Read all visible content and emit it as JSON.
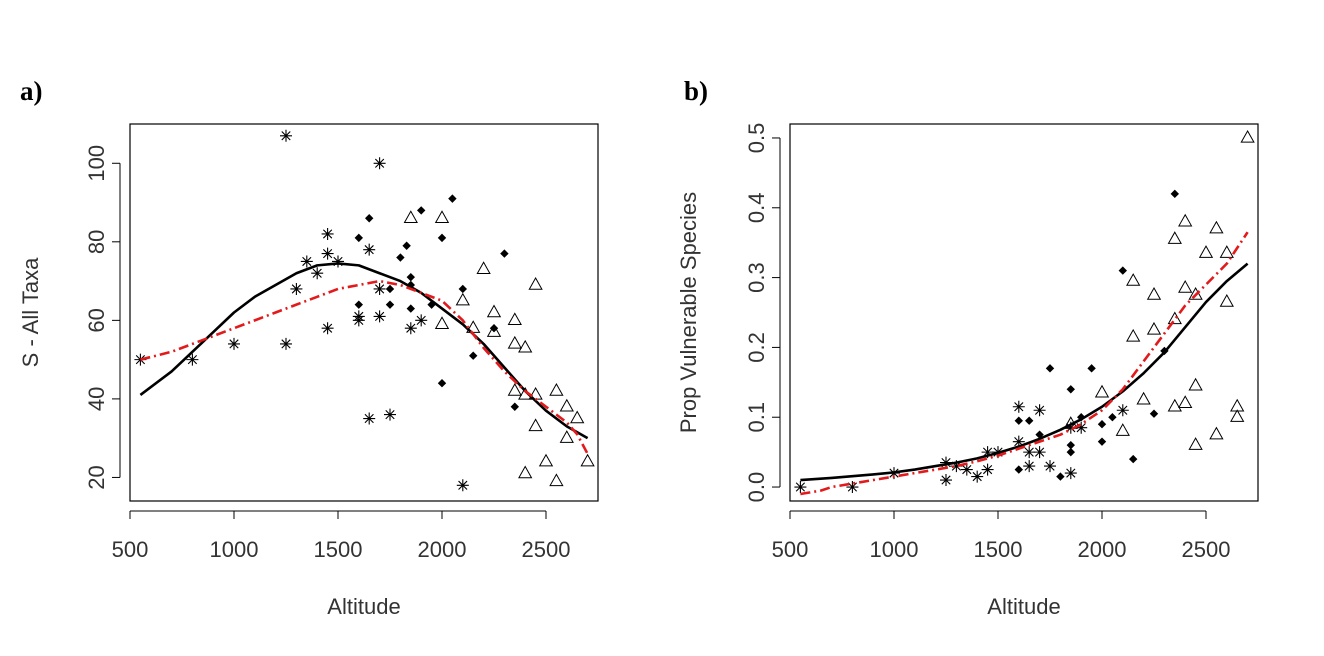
{
  "chart_data": [
    {
      "panel": "a)",
      "type": "scatter",
      "xlabel": "Altitude",
      "ylabel": "S - All Taxa",
      "xlim": [
        500,
        2750
      ],
      "ylim": [
        14,
        110
      ],
      "xticks": [
        500,
        1000,
        1500,
        2000,
        2500
      ],
      "yticks": [
        20,
        40,
        60,
        80,
        100
      ],
      "series": [
        {
          "marker": "asterisk",
          "x": [
            550,
            800,
            1000,
            1250,
            1250,
            1300,
            1350,
            1400,
            1450,
            1450,
            1450,
            1500,
            1600,
            1600,
            1650,
            1650,
            1700,
            1700,
            1700,
            1750,
            1850,
            1900,
            2100
          ],
          "y": [
            50,
            50,
            54,
            107,
            54,
            68,
            75,
            72,
            82,
            77,
            58,
            75,
            61,
            60,
            78,
            35,
            100,
            61,
            68,
            36,
            58,
            60,
            18
          ]
        },
        {
          "marker": "diamond",
          "x": [
            1600,
            1600,
            1650,
            1750,
            1750,
            1800,
            1830,
            1850,
            1850,
            1850,
            1900,
            1950,
            2000,
            2000,
            2050,
            2100,
            2150,
            2250,
            2300,
            2350
          ],
          "y": [
            81,
            64,
            86,
            68,
            64,
            76,
            79,
            71,
            63,
            69,
            88,
            64,
            81,
            44,
            91,
            68,
            51,
            58,
            77,
            38
          ]
        },
        {
          "marker": "triangle",
          "x": [
            1850,
            2000,
            2000,
            2100,
            2150,
            2200,
            2250,
            2250,
            2350,
            2350,
            2350,
            2400,
            2400,
            2400,
            2450,
            2450,
            2450,
            2500,
            2550,
            2550,
            2600,
            2600,
            2650,
            2700
          ],
          "y": [
            86,
            86,
            59,
            65,
            58,
            73,
            62,
            57,
            60,
            54,
            42,
            53,
            41,
            21,
            69,
            41,
            33,
            24,
            42,
            19,
            38,
            30,
            35,
            24
          ]
        }
      ],
      "fits": [
        {
          "style": "solid",
          "color": "#000000",
          "x": [
            550,
            700,
            900,
            1000,
            1100,
            1200,
            1300,
            1400,
            1500,
            1600,
            1700,
            1800,
            1900,
            2000,
            2100,
            2200,
            2300,
            2400,
            2500,
            2600,
            2700
          ],
          "y": [
            41,
            47,
            57,
            62,
            66,
            69,
            72,
            74,
            74.5,
            74,
            72,
            70,
            67,
            63,
            59,
            54,
            48,
            42,
            37,
            33,
            30
          ]
        },
        {
          "style": "dashdot",
          "color": "#e31a1c",
          "x": [
            550,
            700,
            900,
            1000,
            1100,
            1200,
            1300,
            1400,
            1500,
            1600,
            1700,
            1800,
            1900,
            2000,
            2100,
            2200,
            2300,
            2400,
            2500,
            2550,
            2600,
            2650,
            2700
          ],
          "y": [
            50,
            52,
            56,
            58,
            60,
            62,
            64,
            66,
            68,
            69,
            70,
            69,
            67,
            65,
            60,
            53,
            47,
            42,
            38,
            36,
            34,
            31,
            26
          ]
        }
      ]
    },
    {
      "panel": "b)",
      "type": "scatter",
      "xlabel": "Altitude",
      "ylabel": "Prop Vulnerable Species",
      "xlim": [
        500,
        2750
      ],
      "ylim": [
        -0.02,
        0.52
      ],
      "xticks": [
        500,
        1000,
        1500,
        2000,
        2500
      ],
      "yticks": [
        0.0,
        0.1,
        0.2,
        0.3,
        0.4,
        0.5
      ],
      "ytick_labels": [
        "0.0",
        "0.1",
        "0.2",
        "0.3",
        "0.4",
        "0.5"
      ],
      "series": [
        {
          "marker": "asterisk",
          "x": [
            550,
            800,
            1000,
            1250,
            1250,
            1300,
            1350,
            1400,
            1450,
            1450,
            1500,
            1600,
            1600,
            1650,
            1650,
            1700,
            1700,
            1750,
            1850,
            1850,
            1900,
            2100
          ],
          "y": [
            0.0,
            0.0,
            0.02,
            0.035,
            0.01,
            0.03,
            0.025,
            0.015,
            0.05,
            0.025,
            0.05,
            0.115,
            0.065,
            0.05,
            0.03,
            0.11,
            0.05,
            0.03,
            0.085,
            0.02,
            0.085,
            0.11
          ]
        },
        {
          "marker": "diamond",
          "x": [
            1600,
            1600,
            1650,
            1700,
            1750,
            1800,
            1850,
            1850,
            1850,
            1900,
            1950,
            2000,
            2000,
            2050,
            2100,
            2150,
            2250,
            2300,
            2350
          ],
          "y": [
            0.095,
            0.025,
            0.095,
            0.075,
            0.17,
            0.015,
            0.14,
            0.06,
            0.05,
            0.1,
            0.17,
            0.09,
            0.065,
            0.1,
            0.31,
            0.04,
            0.105,
            0.195,
            0.42
          ]
        },
        {
          "marker": "triangle",
          "x": [
            1850,
            2000,
            2100,
            2150,
            2150,
            2200,
            2250,
            2250,
            2350,
            2350,
            2350,
            2400,
            2400,
            2400,
            2450,
            2450,
            2450,
            2500,
            2550,
            2550,
            2600,
            2600,
            2650,
            2650,
            2700
          ],
          "y": [
            0.09,
            0.135,
            0.08,
            0.295,
            0.215,
            0.125,
            0.275,
            0.225,
            0.355,
            0.24,
            0.115,
            0.38,
            0.285,
            0.12,
            0.275,
            0.145,
            0.06,
            0.335,
            0.37,
            0.075,
            0.335,
            0.265,
            0.115,
            0.1,
            0.5
          ]
        }
      ],
      "fits": [
        {
          "style": "solid",
          "color": "#000000",
          "x": [
            550,
            700,
            900,
            1000,
            1100,
            1200,
            1300,
            1400,
            1500,
            1600,
            1700,
            1800,
            1900,
            2000,
            2100,
            2200,
            2300,
            2400,
            2500,
            2600,
            2700
          ],
          "y": [
            0.01,
            0.013,
            0.018,
            0.021,
            0.025,
            0.03,
            0.035,
            0.041,
            0.049,
            0.058,
            0.069,
            0.082,
            0.097,
            0.115,
            0.137,
            0.163,
            0.193,
            0.229,
            0.265,
            0.295,
            0.32
          ]
        },
        {
          "style": "dashdot",
          "color": "#e31a1c",
          "x": [
            550,
            650,
            700,
            800,
            900,
            1000,
            1100,
            1200,
            1300,
            1400,
            1500,
            1600,
            1700,
            1800,
            1900,
            2000,
            2100,
            2200,
            2300,
            2400,
            2500,
            2600,
            2700
          ],
          "y": [
            -0.01,
            -0.005,
            0.0,
            0.005,
            0.01,
            0.015,
            0.02,
            0.025,
            0.03,
            0.037,
            0.045,
            0.055,
            0.065,
            0.075,
            0.09,
            0.11,
            0.14,
            0.18,
            0.22,
            0.26,
            0.29,
            0.32,
            0.365
          ]
        }
      ]
    }
  ]
}
